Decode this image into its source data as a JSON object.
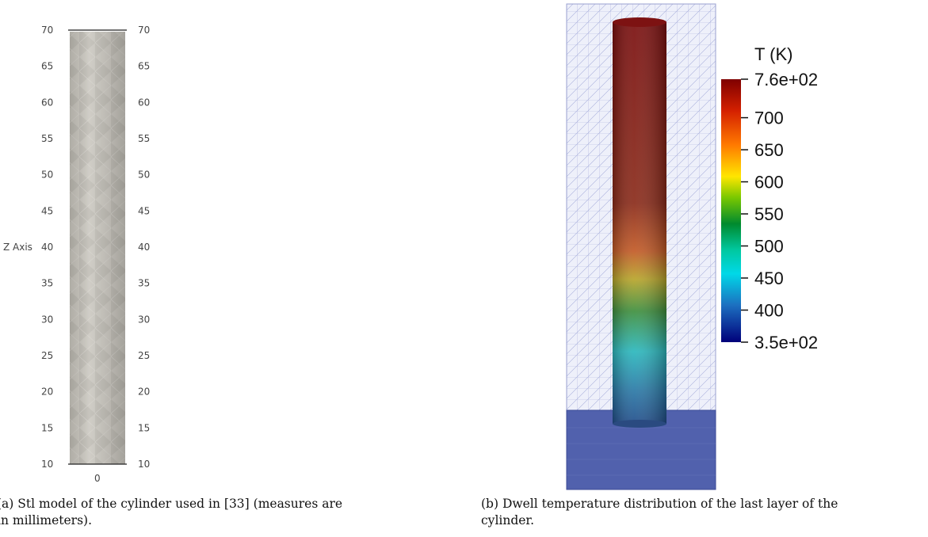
{
  "figure_a": {
    "axis_label": "Z Axis",
    "ticks": [
      "70",
      "65",
      "60",
      "55",
      "50",
      "45",
      "40",
      "35",
      "30",
      "25",
      "20",
      "15",
      "10"
    ],
    "x_tick": "0",
    "caption_lines": [
      "(a) Stl model of the cylinder used in [33] (measures are",
      "in millimeters)."
    ],
    "colors": {
      "cylinder": "#c9c6be",
      "edge": "#8d8a83"
    }
  },
  "figure_b": {
    "colorbar": {
      "title": "T (K)",
      "max_label": "7.6e+02",
      "min_label": "3.5e+02",
      "tick_labels": [
        "700",
        "650",
        "600",
        "550",
        "500",
        "450",
        "400"
      ],
      "tick_values": [
        700,
        650,
        600,
        550,
        500,
        450,
        400
      ],
      "range": [
        350,
        760
      ],
      "colormap": "jet"
    },
    "caption_lines": [
      "(b) Dwell temperature distribution of the last layer of the",
      "cylinder."
    ],
    "colors": {
      "mesh": "#7a7fc6",
      "base": "#4b5aa8"
    }
  }
}
